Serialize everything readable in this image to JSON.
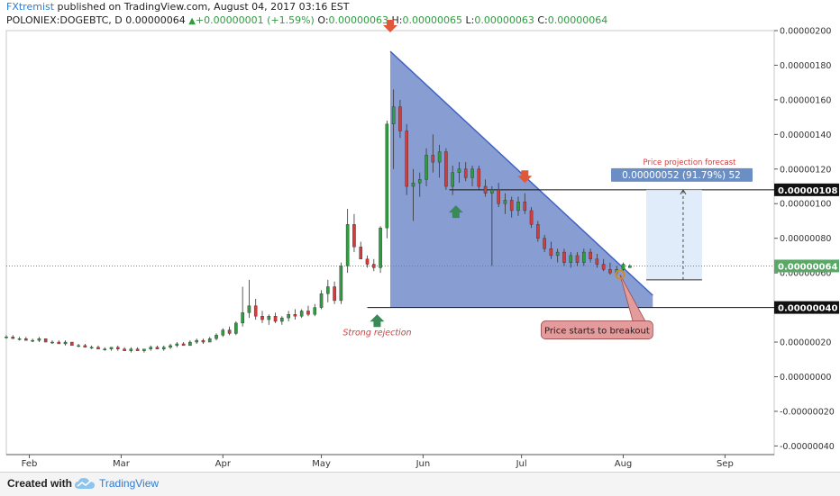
{
  "header": {
    "author": "FXtremist",
    "published_text": " published on TradingView.com, August 04, 2017 03:16 EST",
    "symbol": "POLONIEX:DOGEBTC, D",
    "last_price": "0.00000064",
    "change": "+0.00000001 (+1.59%)",
    "o_label": "O:",
    "o_value": "0.00000063",
    "h_label": "H:",
    "h_value": "0.00000065",
    "l_label": "L:",
    "l_value": "0.00000063",
    "c_label": "C:",
    "c_value": "0.00000064"
  },
  "footer": {
    "created_with": "Created with",
    "brand": "TradingView",
    "logo_icon": "tradingview-cloud-icon"
  },
  "colors": {
    "up": "#2e9c3f",
    "down": "#d23c3c",
    "triangle_fill": "#5a78c2",
    "triangle_edge": "#3f63c4",
    "projection_box": "#dbe9f8",
    "projection_label_bg": "#6b8fc4",
    "arrow_red": "#e0573a",
    "arrow_green": "#3a8a57",
    "callout_bg": "#e49b9b",
    "annotation_red": "#d23c3c",
    "current_price_bg": "#5aa867"
  },
  "chart_data": {
    "type": "candlestick",
    "y_axis": {
      "position": "right",
      "range": [
        -4.5e-07,
        2e-06
      ],
      "ticks": [
        "0.00000200",
        "0.00000180",
        "0.00000160",
        "0.00000140",
        "0.00000120",
        "0.00000100",
        "0.00000080",
        "0.00000060",
        "0.00000040",
        "0.00000020",
        "0.00000000",
        "-0.00000020",
        "-0.00000040"
      ],
      "tick_values": [
        2e-06,
        1.8e-06,
        1.6e-06,
        1.4e-06,
        1.2e-06,
        1e-06,
        8e-07,
        6e-07,
        4e-07,
        2e-07,
        0,
        -2e-07,
        -4e-07
      ]
    },
    "x_axis": {
      "range": [
        "2017-01-25",
        "2017-09-16"
      ],
      "ticks": [
        "Feb",
        "Mar",
        "Apr",
        "May",
        "Jun",
        "Jul",
        "Aug",
        "Sep"
      ],
      "tick_dates": [
        "2017-02-01",
        "2017-03-01",
        "2017-04-01",
        "2017-05-01",
        "2017-06-01",
        "2017-07-01",
        "2017-08-01",
        "2017-09-01"
      ]
    },
    "price_labels": [
      {
        "text": "0.00000108",
        "value": 1.08e-06,
        "style": "black"
      },
      {
        "text": "0.00000064",
        "value": 6.4e-07,
        "style": "green"
      },
      {
        "text": "0.00000040",
        "value": 4e-07,
        "style": "black"
      }
    ],
    "horizontal_levels": [
      {
        "value": 1.08e-06,
        "from": "2017-06-09",
        "to": "2017-09-16"
      },
      {
        "value": 4e-07,
        "from": "2017-05-15",
        "to": "2017-09-16"
      }
    ],
    "current_price_line": 6.4e-07,
    "triangle": {
      "apex": {
        "date": "2017-05-22",
        "value": 1.88e-06
      },
      "bottom_left": {
        "date": "2017-05-22",
        "value": 4e-07
      },
      "bottom_right": {
        "date": "2017-08-10",
        "value": 4e-07
      },
      "edge_end": {
        "date": "2017-08-10",
        "value": 4.7e-07
      }
    },
    "projection": {
      "label": "Price projection forecast",
      "value_text": "0.00000052 (91.79%) 52",
      "from_date": "2017-08-08",
      "to_date": "2017-08-25",
      "low": 5.6e-07,
      "high": 1.08e-06
    },
    "annotations": [
      {
        "text": "Strong rejection",
        "date": "2017-05-18",
        "value": 2.4e-07,
        "color": "red"
      },
      {
        "text": "Price starts to breakout",
        "date": "2017-07-24",
        "value": 2.7e-07,
        "color": "callout"
      }
    ],
    "arrows": [
      {
        "direction": "down",
        "date": "2017-05-22",
        "value": 2e-06,
        "color": "red"
      },
      {
        "direction": "down",
        "date": "2017-07-02",
        "value": 1.13e-06,
        "color": "red"
      },
      {
        "direction": "up",
        "date": "2017-05-18",
        "value": 3.5e-07,
        "color": "green"
      },
      {
        "direction": "up",
        "date": "2017-06-11",
        "value": 9.8e-07,
        "color": "green"
      }
    ],
    "breakout_marker": {
      "date": "2017-07-31",
      "value": 5.9e-07
    },
    "series": [
      {
        "date": "2017-01-25",
        "o": 2.3e-07,
        "h": 2.4e-07,
        "l": 2.2e-07,
        "c": 2.3e-07
      },
      {
        "date": "2017-01-27",
        "o": 2.3e-07,
        "h": 2.4e-07,
        "l": 2.2e-07,
        "c": 2.2e-07
      },
      {
        "date": "2017-01-29",
        "o": 2.2e-07,
        "h": 2.3e-07,
        "l": 2.1e-07,
        "c": 2.2e-07
      },
      {
        "date": "2017-01-31",
        "o": 2.2e-07,
        "h": 2.3e-07,
        "l": 2.1e-07,
        "c": 2.1e-07
      },
      {
        "date": "2017-02-02",
        "o": 2.1e-07,
        "h": 2.2e-07,
        "l": 2e-07,
        "c": 2.1e-07
      },
      {
        "date": "2017-02-04",
        "o": 2.1e-07,
        "h": 2.3e-07,
        "l": 2e-07,
        "c": 2.2e-07
      },
      {
        "date": "2017-02-06",
        "o": 2.2e-07,
        "h": 2.2e-07,
        "l": 2e-07,
        "c": 2e-07
      },
      {
        "date": "2017-02-08",
        "o": 2e-07,
        "h": 2.1e-07,
        "l": 1.9e-07,
        "c": 2e-07
      },
      {
        "date": "2017-02-10",
        "o": 2e-07,
        "h": 2.1e-07,
        "l": 1.9e-07,
        "c": 1.9e-07
      },
      {
        "date": "2017-02-12",
        "o": 1.9e-07,
        "h": 2.1e-07,
        "l": 1.8e-07,
        "c": 2e-07
      },
      {
        "date": "2017-02-14",
        "o": 2e-07,
        "h": 2e-07,
        "l": 1.8e-07,
        "c": 1.8e-07
      },
      {
        "date": "2017-02-16",
        "o": 1.8e-07,
        "h": 1.9e-07,
        "l": 1.7e-07,
        "c": 1.8e-07
      },
      {
        "date": "2017-02-18",
        "o": 1.8e-07,
        "h": 1.9e-07,
        "l": 1.7e-07,
        "c": 1.7e-07
      },
      {
        "date": "2017-02-20",
        "o": 1.7e-07,
        "h": 1.8e-07,
        "l": 1.6e-07,
        "c": 1.7e-07
      },
      {
        "date": "2017-02-22",
        "o": 1.7e-07,
        "h": 1.8e-07,
        "l": 1.6e-07,
        "c": 1.6e-07
      },
      {
        "date": "2017-02-24",
        "o": 1.6e-07,
        "h": 1.7e-07,
        "l": 1.5e-07,
        "c": 1.6e-07
      },
      {
        "date": "2017-02-26",
        "o": 1.6e-07,
        "h": 1.7e-07,
        "l": 1.5e-07,
        "c": 1.7e-07
      },
      {
        "date": "2017-02-28",
        "o": 1.7e-07,
        "h": 1.8e-07,
        "l": 1.5e-07,
        "c": 1.6e-07
      },
      {
        "date": "2017-03-02",
        "o": 1.6e-07,
        "h": 1.7e-07,
        "l": 1.5e-07,
        "c": 1.5e-07
      },
      {
        "date": "2017-03-04",
        "o": 1.5e-07,
        "h": 1.7e-07,
        "l": 1.4e-07,
        "c": 1.6e-07
      },
      {
        "date": "2017-03-06",
        "o": 1.6e-07,
        "h": 1.7e-07,
        "l": 1.5e-07,
        "c": 1.5e-07
      },
      {
        "date": "2017-03-08",
        "o": 1.5e-07,
        "h": 1.6e-07,
        "l": 1.4e-07,
        "c": 1.6e-07
      },
      {
        "date": "2017-03-10",
        "o": 1.6e-07,
        "h": 1.8e-07,
        "l": 1.5e-07,
        "c": 1.7e-07
      },
      {
        "date": "2017-03-12",
        "o": 1.7e-07,
        "h": 1.8e-07,
        "l": 1.6e-07,
        "c": 1.6e-07
      },
      {
        "date": "2017-03-14",
        "o": 1.6e-07,
        "h": 1.8e-07,
        "l": 1.5e-07,
        "c": 1.7e-07
      },
      {
        "date": "2017-03-16",
        "o": 1.7e-07,
        "h": 1.9e-07,
        "l": 1.6e-07,
        "c": 1.8e-07
      },
      {
        "date": "2017-03-18",
        "o": 1.8e-07,
        "h": 2e-07,
        "l": 1.7e-07,
        "c": 1.9e-07
      },
      {
        "date": "2017-03-20",
        "o": 1.9e-07,
        "h": 2e-07,
        "l": 1.8e-07,
        "c": 1.8e-07
      },
      {
        "date": "2017-03-22",
        "o": 1.8e-07,
        "h": 2.1e-07,
        "l": 1.8e-07,
        "c": 2e-07
      },
      {
        "date": "2017-03-24",
        "o": 2e-07,
        "h": 2.2e-07,
        "l": 1.9e-07,
        "c": 2.1e-07
      },
      {
        "date": "2017-03-26",
        "o": 2.1e-07,
        "h": 2.2e-07,
        "l": 1.9e-07,
        "c": 2e-07
      },
      {
        "date": "2017-03-28",
        "o": 2e-07,
        "h": 2.3e-07,
        "l": 2e-07,
        "c": 2.2e-07
      },
      {
        "date": "2017-03-30",
        "o": 2.2e-07,
        "h": 2.5e-07,
        "l": 2.1e-07,
        "c": 2.4e-07
      },
      {
        "date": "2017-04-01",
        "o": 2.4e-07,
        "h": 2.8e-07,
        "l": 2.3e-07,
        "c": 2.7e-07
      },
      {
        "date": "2017-04-03",
        "o": 2.7e-07,
        "h": 2.9e-07,
        "l": 2.4e-07,
        "c": 2.5e-07
      },
      {
        "date": "2017-04-05",
        "o": 2.5e-07,
        "h": 3.2e-07,
        "l": 2.4e-07,
        "c": 3.1e-07
      },
      {
        "date": "2017-04-07",
        "o": 3.1e-07,
        "h": 5.2e-07,
        "l": 2.9e-07,
        "c": 3.7e-07
      },
      {
        "date": "2017-04-09",
        "o": 3.7e-07,
        "h": 5.6e-07,
        "l": 3.4e-07,
        "c": 4.1e-07
      },
      {
        "date": "2017-04-11",
        "o": 4.1e-07,
        "h": 4.5e-07,
        "l": 3.3e-07,
        "c": 3.5e-07
      },
      {
        "date": "2017-04-13",
        "o": 3.5e-07,
        "h": 3.8e-07,
        "l": 3.1e-07,
        "c": 3.3e-07
      },
      {
        "date": "2017-04-15",
        "o": 3.3e-07,
        "h": 3.6e-07,
        "l": 3e-07,
        "c": 3.5e-07
      },
      {
        "date": "2017-04-17",
        "o": 3.5e-07,
        "h": 3.7e-07,
        "l": 3.1e-07,
        "c": 3.2e-07
      },
      {
        "date": "2017-04-19",
        "o": 3.2e-07,
        "h": 3.5e-07,
        "l": 3e-07,
        "c": 3.4e-07
      },
      {
        "date": "2017-04-21",
        "o": 3.4e-07,
        "h": 3.8e-07,
        "l": 3.2e-07,
        "c": 3.6e-07
      },
      {
        "date": "2017-04-23",
        "o": 3.6e-07,
        "h": 3.9e-07,
        "l": 3.3e-07,
        "c": 3.5e-07
      },
      {
        "date": "2017-04-25",
        "o": 3.5e-07,
        "h": 3.9e-07,
        "l": 3.4e-07,
        "c": 3.8e-07
      },
      {
        "date": "2017-04-27",
        "o": 3.8e-07,
        "h": 4.1e-07,
        "l": 3.5e-07,
        "c": 3.6e-07
      },
      {
        "date": "2017-04-29",
        "o": 3.6e-07,
        "h": 4.2e-07,
        "l": 3.5e-07,
        "c": 4e-07
      },
      {
        "date": "2017-05-01",
        "o": 4e-07,
        "h": 5e-07,
        "l": 3.9e-07,
        "c": 4.8e-07
      },
      {
        "date": "2017-05-03",
        "o": 4.8e-07,
        "h": 5.6e-07,
        "l": 4.3e-07,
        "c": 5.2e-07
      },
      {
        "date": "2017-05-05",
        "o": 5.2e-07,
        "h": 5.5e-07,
        "l": 4.2e-07,
        "c": 4.4e-07
      },
      {
        "date": "2017-05-07",
        "o": 4.4e-07,
        "h": 6.6e-07,
        "l": 4.2e-07,
        "c": 6.4e-07
      },
      {
        "date": "2017-05-09",
        "o": 6.4e-07,
        "h": 9.7e-07,
        "l": 6e-07,
        "c": 8.8e-07
      },
      {
        "date": "2017-05-11",
        "o": 8.8e-07,
        "h": 9.4e-07,
        "l": 7.2e-07,
        "c": 7.5e-07
      },
      {
        "date": "2017-05-13",
        "o": 7.5e-07,
        "h": 7.8e-07,
        "l": 6.8e-07,
        "c": 6.8e-07
      },
      {
        "date": "2017-05-15",
        "o": 6.8e-07,
        "h": 7e-07,
        "l": 6.3e-07,
        "c": 6.5e-07
      },
      {
        "date": "2017-05-17",
        "o": 6.5e-07,
        "h": 6.8e-07,
        "l": 6.1e-07,
        "c": 6.3e-07
      },
      {
        "date": "2017-05-19",
        "o": 6.3e-07,
        "h": 8.7e-07,
        "l": 6e-07,
        "c": 8.6e-07
      },
      {
        "date": "2017-05-21",
        "o": 8.6e-07,
        "h": 1.48e-06,
        "l": 8e-07,
        "c": 1.46e-06
      },
      {
        "date": "2017-05-23",
        "o": 1.46e-06,
        "h": 1.66e-06,
        "l": 1.2e-06,
        "c": 1.56e-06
      },
      {
        "date": "2017-05-25",
        "o": 1.56e-06,
        "h": 1.6e-06,
        "l": 1.38e-06,
        "c": 1.42e-06
      },
      {
        "date": "2017-05-27",
        "o": 1.42e-06,
        "h": 1.46e-06,
        "l": 1.05e-06,
        "c": 1.1e-06
      },
      {
        "date": "2017-05-29",
        "o": 1.1e-06,
        "h": 1.2e-06,
        "l": 9e-07,
        "c": 1.12e-06
      },
      {
        "date": "2017-05-31",
        "o": 1.12e-06,
        "h": 1.18e-06,
        "l": 1.04e-06,
        "c": 1.14e-06
      },
      {
        "date": "2017-06-02",
        "o": 1.14e-06,
        "h": 1.32e-06,
        "l": 1.1e-06,
        "c": 1.28e-06
      },
      {
        "date": "2017-06-04",
        "o": 1.28e-06,
        "h": 1.4e-06,
        "l": 1.18e-06,
        "c": 1.24e-06
      },
      {
        "date": "2017-06-06",
        "o": 1.24e-06,
        "h": 1.34e-06,
        "l": 1.15e-06,
        "c": 1.3e-06
      },
      {
        "date": "2017-06-08",
        "o": 1.3e-06,
        "h": 1.32e-06,
        "l": 1.08e-06,
        "c": 1.1e-06
      },
      {
        "date": "2017-06-10",
        "o": 1.1e-06,
        "h": 1.22e-06,
        "l": 1.05e-06,
        "c": 1.18e-06
      },
      {
        "date": "2017-06-12",
        "o": 1.18e-06,
        "h": 1.24e-06,
        "l": 1.12e-06,
        "c": 1.2e-06
      },
      {
        "date": "2017-06-14",
        "o": 1.2e-06,
        "h": 1.24e-06,
        "l": 1.13e-06,
        "c": 1.15e-06
      },
      {
        "date": "2017-06-16",
        "o": 1.15e-06,
        "h": 1.22e-06,
        "l": 1.1e-06,
        "c": 1.2e-06
      },
      {
        "date": "2017-06-18",
        "o": 1.2e-06,
        "h": 1.22e-06,
        "l": 1.08e-06,
        "c": 1.1e-06
      },
      {
        "date": "2017-06-20",
        "o": 1.1e-06,
        "h": 1.14e-06,
        "l": 1.04e-06,
        "c": 1.06e-06
      },
      {
        "date": "2017-06-22",
        "o": 1.06e-06,
        "h": 1.1e-06,
        "l": 6.4e-07,
        "c": 1.08e-06
      },
      {
        "date": "2017-06-24",
        "o": 1.08e-06,
        "h": 1.12e-06,
        "l": 9.8e-07,
        "c": 1e-06
      },
      {
        "date": "2017-06-26",
        "o": 1e-06,
        "h": 1.06e-06,
        "l": 9.4e-07,
        "c": 1.02e-06
      },
      {
        "date": "2017-06-28",
        "o": 1.02e-06,
        "h": 1.04e-06,
        "l": 9.2e-07,
        "c": 9.6e-07
      },
      {
        "date": "2017-06-30",
        "o": 9.6e-07,
        "h": 1.04e-06,
        "l": 9.3e-07,
        "c": 1.01e-06
      },
      {
        "date": "2017-07-02",
        "o": 1.01e-06,
        "h": 1.06e-06,
        "l": 9.4e-07,
        "c": 9.6e-07
      },
      {
        "date": "2017-07-04",
        "o": 9.6e-07,
        "h": 9.8e-07,
        "l": 8.6e-07,
        "c": 8.8e-07
      },
      {
        "date": "2017-07-06",
        "o": 8.8e-07,
        "h": 9e-07,
        "l": 7.8e-07,
        "c": 8e-07
      },
      {
        "date": "2017-07-08",
        "o": 8e-07,
        "h": 8.2e-07,
        "l": 7.2e-07,
        "c": 7.4e-07
      },
      {
        "date": "2017-07-10",
        "o": 7.4e-07,
        "h": 7.8e-07,
        "l": 6.8e-07,
        "c": 7e-07
      },
      {
        "date": "2017-07-12",
        "o": 7e-07,
        "h": 7.4e-07,
        "l": 6.6e-07,
        "c": 7.2e-07
      },
      {
        "date": "2017-07-14",
        "o": 7.2e-07,
        "h": 7.4e-07,
        "l": 6.4e-07,
        "c": 6.6e-07
      },
      {
        "date": "2017-07-16",
        "o": 6.6e-07,
        "h": 7.2e-07,
        "l": 6.3e-07,
        "c": 7e-07
      },
      {
        "date": "2017-07-18",
        "o": 7e-07,
        "h": 7.2e-07,
        "l": 6.4e-07,
        "c": 6.6e-07
      },
      {
        "date": "2017-07-20",
        "o": 6.6e-07,
        "h": 7.4e-07,
        "l": 6.4e-07,
        "c": 7.2e-07
      },
      {
        "date": "2017-07-22",
        "o": 7.2e-07,
        "h": 7.4e-07,
        "l": 6.6e-07,
        "c": 6.8e-07
      },
      {
        "date": "2017-07-24",
        "o": 6.8e-07,
        "h": 7.1e-07,
        "l": 6.3e-07,
        "c": 6.5e-07
      },
      {
        "date": "2017-07-26",
        "o": 6.5e-07,
        "h": 6.8e-07,
        "l": 6.1e-07,
        "c": 6.2e-07
      },
      {
        "date": "2017-07-28",
        "o": 6.2e-07,
        "h": 6.6e-07,
        "l": 5.9e-07,
        "c": 6e-07
      },
      {
        "date": "2017-07-30",
        "o": 6e-07,
        "h": 6.4e-07,
        "l": 5.8e-07,
        "c": 6.2e-07
      },
      {
        "date": "2017-08-01",
        "o": 6.2e-07,
        "h": 6.6e-07,
        "l": 6e-07,
        "c": 6.5e-07
      },
      {
        "date": "2017-08-03",
        "o": 6.3e-07,
        "h": 6.5e-07,
        "l": 6.3e-07,
        "c": 6.4e-07
      }
    ]
  }
}
